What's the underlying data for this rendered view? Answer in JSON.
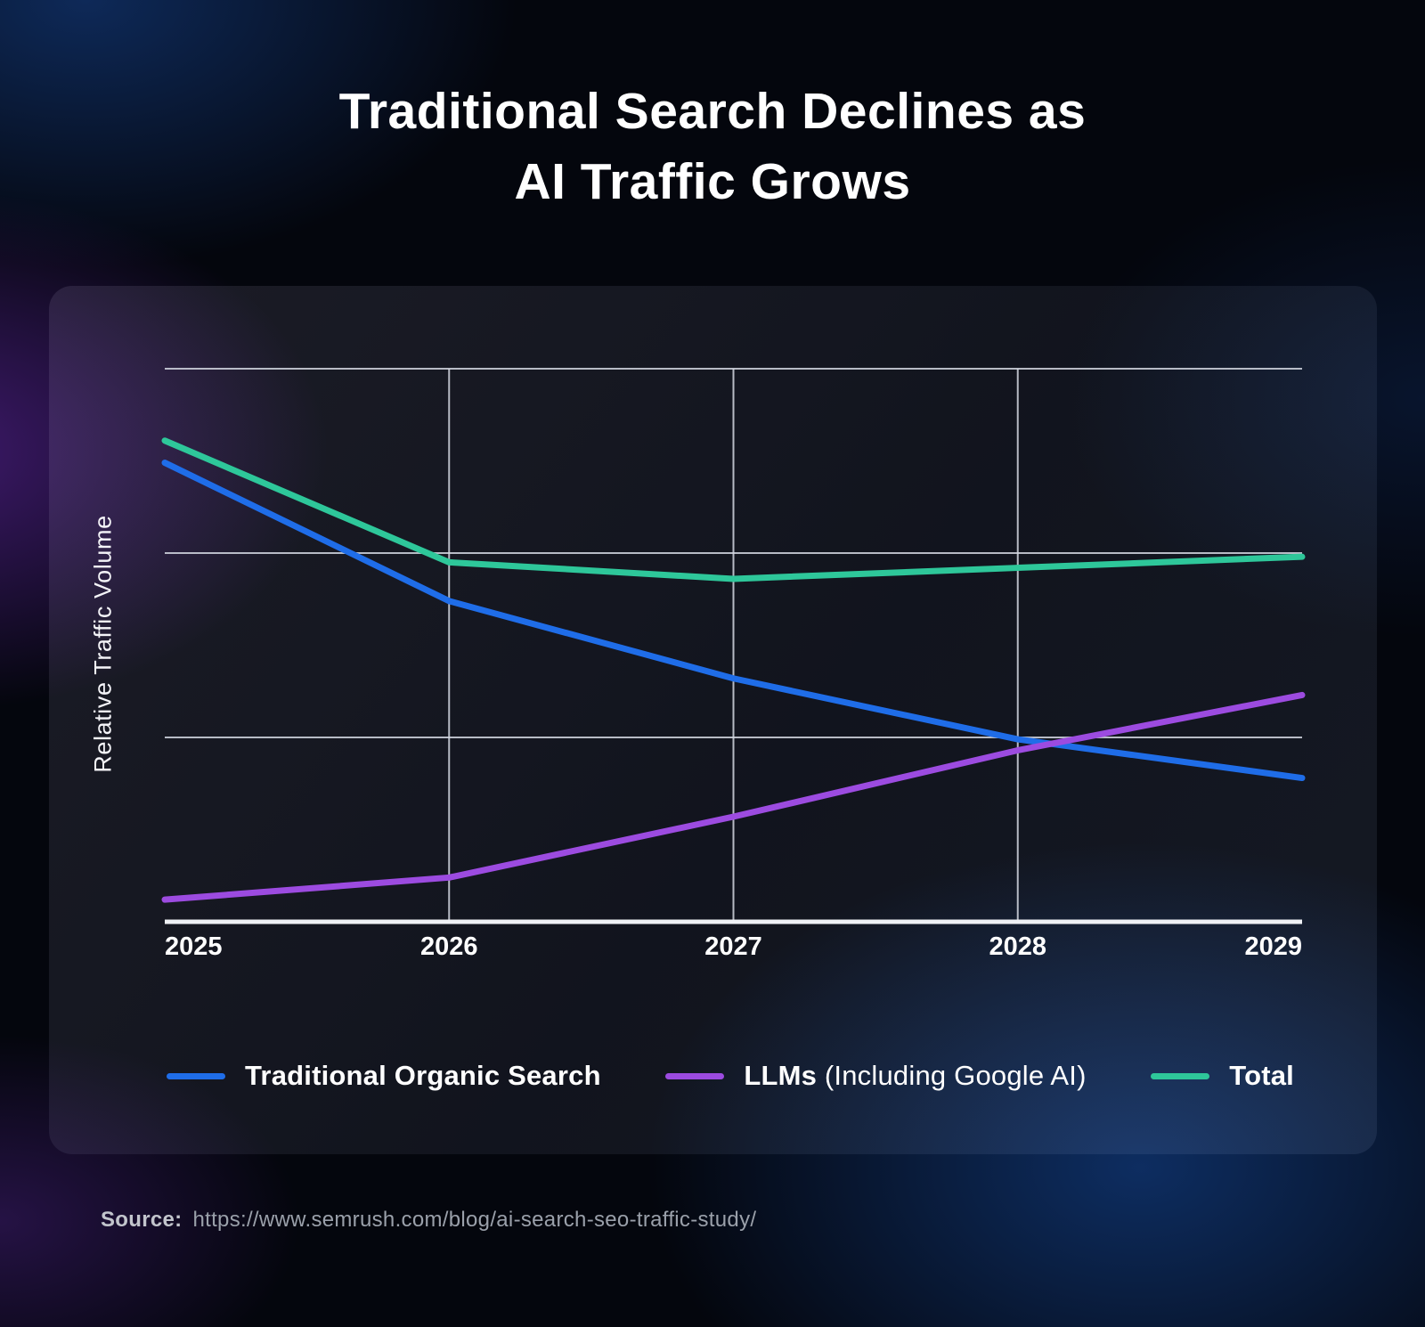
{
  "title": {
    "line1": "Traditional Search Declines as",
    "line2": "AI Traffic Grows"
  },
  "chart_data": {
    "type": "line",
    "title": "Traditional Search Declines as AI Traffic Grows",
    "categories": [
      "2025",
      "2026",
      "2027",
      "2028",
      "2029"
    ],
    "xlabel": "",
    "ylabel": "Relative Traffic Volume",
    "ylim": [
      0,
      100
    ],
    "y_ticks_labeled": false,
    "grid": true,
    "legend_position": "bottom",
    "series": [
      {
        "name": "Traditional Organic Search",
        "color": "#1f6de8",
        "values": [
          83,
          58,
          44,
          33,
          26
        ]
      },
      {
        "name": "LLMs (Including Google AI)",
        "color": "#9c4be0",
        "values": [
          4,
          8,
          19,
          31,
          41
        ]
      },
      {
        "name": "Total",
        "color": "#2ec79a",
        "values": [
          87,
          65,
          62,
          64,
          66
        ]
      }
    ]
  },
  "legend": {
    "items": [
      {
        "bold": "Traditional Organic Search",
        "normal": "",
        "color": "#1f6de8"
      },
      {
        "bold": "LLMs",
        "normal": " (Including Google AI)",
        "color": "#9c4be0"
      },
      {
        "bold": "Total",
        "normal": "",
        "color": "#2ec79a"
      }
    ]
  },
  "source": {
    "label": "Source:",
    "url": "https://www.semrush.com/blog/ai-search-seo-traffic-study/"
  },
  "colors": {
    "grid_line": "#d4d8e2",
    "axis_line": "#eff1f5",
    "tick_label": "#ffffff",
    "background": "#04060d"
  }
}
